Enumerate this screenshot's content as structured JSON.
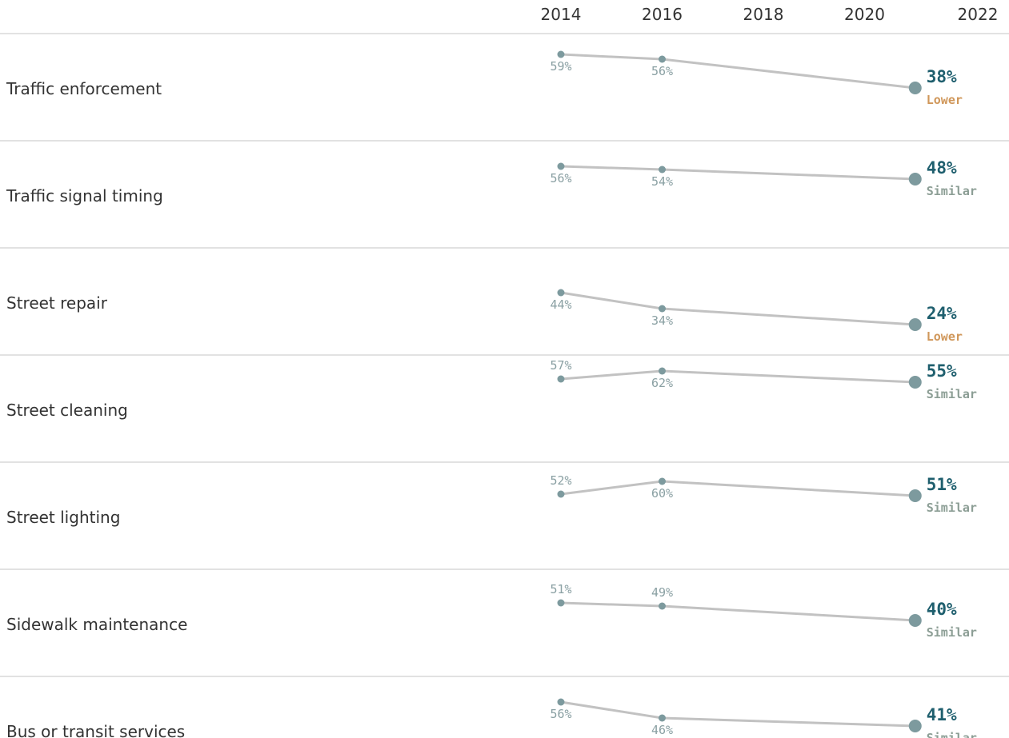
{
  "colors": {
    "line": "#c2c2c2",
    "point": "#7d9a9e",
    "final_value": "#1f5f6e",
    "status_lower": "#d0975a",
    "status_similar": "#8c9e95",
    "divider": "#d9d9d9"
  },
  "chart_data": {
    "type": "line",
    "x_ticks": [
      "2014",
      "2016",
      "2018",
      "2020",
      "2022"
    ],
    "xlim": [
      2014,
      2022
    ],
    "ylim": [
      20,
      65
    ],
    "rows": [
      {
        "label": "Traffic enforcement",
        "points": [
          {
            "x": 2014,
            "y": 59,
            "label": "59%"
          },
          {
            "x": 2016,
            "y": 56,
            "label": "56%"
          },
          {
            "x": 2021,
            "y": 38,
            "label": "38%"
          }
        ],
        "status": "Lower"
      },
      {
        "label": "Traffic signal timing",
        "points": [
          {
            "x": 2014,
            "y": 56,
            "label": "56%"
          },
          {
            "x": 2016,
            "y": 54,
            "label": "54%"
          },
          {
            "x": 2021,
            "y": 48,
            "label": "48%"
          }
        ],
        "status": "Similar"
      },
      {
        "label": "Street repair",
        "points": [
          {
            "x": 2014,
            "y": 44,
            "label": "44%"
          },
          {
            "x": 2016,
            "y": 34,
            "label": "34%"
          },
          {
            "x": 2021,
            "y": 24,
            "label": "24%"
          }
        ],
        "status": "Lower"
      },
      {
        "label": "Street cleaning",
        "points": [
          {
            "x": 2014,
            "y": 57,
            "label": "57%"
          },
          {
            "x": 2016,
            "y": 62,
            "label": "62%"
          },
          {
            "x": 2021,
            "y": 55,
            "label": "55%"
          }
        ],
        "status": "Similar"
      },
      {
        "label": "Street lighting",
        "points": [
          {
            "x": 2014,
            "y": 52,
            "label": "52%"
          },
          {
            "x": 2016,
            "y": 60,
            "label": "60%"
          },
          {
            "x": 2021,
            "y": 51,
            "label": "51%"
          }
        ],
        "status": "Similar"
      },
      {
        "label": "Sidewalk maintenance",
        "points": [
          {
            "x": 2014,
            "y": 51,
            "label": "51%"
          },
          {
            "x": 2016,
            "y": 49,
            "label": "49%"
          },
          {
            "x": 2021,
            "y": 40,
            "label": "40%"
          }
        ],
        "status": "Similar"
      },
      {
        "label": "Bus or transit services",
        "points": [
          {
            "x": 2014,
            "y": 56,
            "label": "56%"
          },
          {
            "x": 2016,
            "y": 46,
            "label": "46%"
          },
          {
            "x": 2021,
            "y": 41,
            "label": "41%"
          }
        ],
        "status": "Similar"
      }
    ]
  }
}
